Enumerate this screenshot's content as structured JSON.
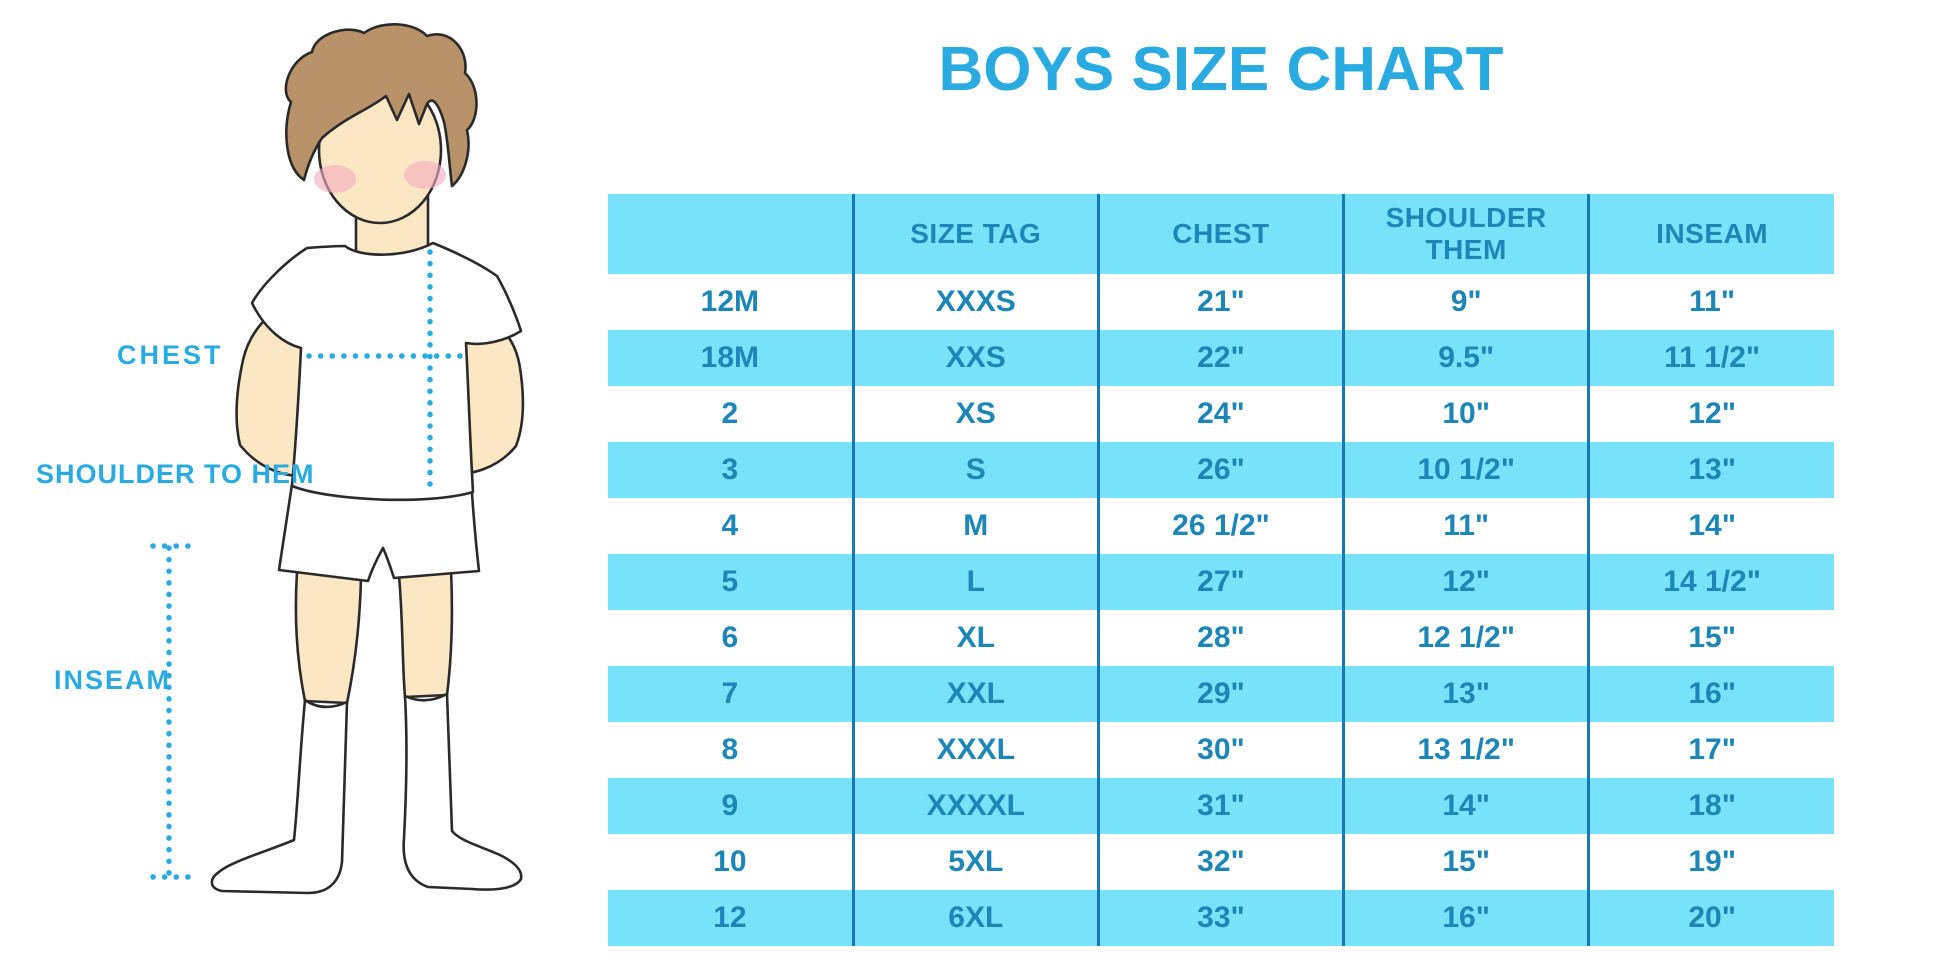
{
  "title": "BOYS SIZE CHART",
  "figure": {
    "labels": {
      "chest": "CHEST",
      "shoulder_to_hem": "SHOULDER TO HEM",
      "inseam": "INSEAM"
    }
  },
  "table": {
    "headers": [
      "",
      "SIZE TAG",
      "CHEST",
      "SHOULDER THEM",
      "INSEAM"
    ],
    "rows": [
      [
        "12M",
        "XXXS",
        "21\"",
        "9\"",
        "11\""
      ],
      [
        "18M",
        "XXS",
        "22\"",
        "9.5\"",
        "11 1/2\""
      ],
      [
        "2",
        "XS",
        "24\"",
        "10\"",
        "12\""
      ],
      [
        "3",
        "S",
        "26\"",
        "10 1/2\"",
        "13\""
      ],
      [
        "4",
        "M",
        "26 1/2\"",
        "11\"",
        "14\""
      ],
      [
        "5",
        "L",
        "27\"",
        "12\"",
        "14 1/2\""
      ],
      [
        "6",
        "XL",
        "28\"",
        "12 1/2\"",
        "15\""
      ],
      [
        "7",
        "XXL",
        "29\"",
        "13\"",
        "16\""
      ],
      [
        "8",
        "XXXL",
        "30\"",
        "13 1/2\"",
        "17\""
      ],
      [
        "9",
        "XXXXL",
        "31\"",
        "14\"",
        "18\""
      ],
      [
        "10",
        "5XL",
        "32\"",
        "15\"",
        "19\""
      ],
      [
        "12",
        "6XL",
        "33\"",
        "16\"",
        "20\""
      ]
    ]
  },
  "chart_data": {
    "type": "table",
    "title": "BOYS SIZE CHART",
    "columns": [
      "",
      "SIZE TAG",
      "CHEST",
      "SHOULDER THEM",
      "INSEAM"
    ],
    "rows": [
      [
        "12M",
        "XXXS",
        "21\"",
        "9\"",
        "11\""
      ],
      [
        "18M",
        "XXS",
        "22\"",
        "9.5\"",
        "11 1/2\""
      ],
      [
        "2",
        "XS",
        "24\"",
        "10\"",
        "12\""
      ],
      [
        "3",
        "S",
        "26\"",
        "10 1/2\"",
        "13\""
      ],
      [
        "4",
        "M",
        "26 1/2\"",
        "11\"",
        "14\""
      ],
      [
        "5",
        "L",
        "27\"",
        "12\"",
        "14 1/2\""
      ],
      [
        "6",
        "XL",
        "28\"",
        "12 1/2\"",
        "15\""
      ],
      [
        "7",
        "XXL",
        "29\"",
        "13\"",
        "16\""
      ],
      [
        "8",
        "XXXL",
        "30\"",
        "13 1/2\"",
        "17\""
      ],
      [
        "9",
        "XXXXL",
        "31\"",
        "14\"",
        "18\""
      ],
      [
        "10",
        "5XL",
        "32\"",
        "15\"",
        "19\""
      ],
      [
        "12",
        "6XL",
        "33\"",
        "16\"",
        "20\""
      ]
    ],
    "measurement_labels": [
      "CHEST",
      "SHOULDER TO HEM",
      "INSEAM"
    ],
    "legend_position": "none",
    "grid": "column-dividers",
    "stripe_pattern": "alternating rows, first row white"
  },
  "colors": {
    "accent": "#29ABE2",
    "table_stripe": "#78E2FA",
    "table_text": "#1D86B8",
    "divider": "#1878B5",
    "skin": "#FBE7C3",
    "hair": "#B8936A",
    "blush": "#F2ACC0",
    "outline": "#2A2A2A"
  }
}
